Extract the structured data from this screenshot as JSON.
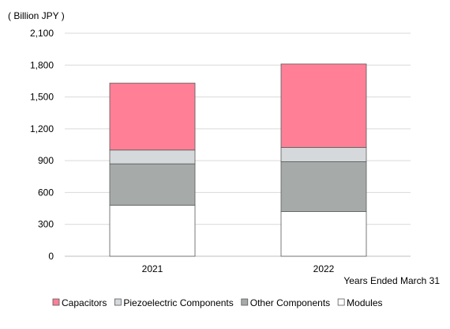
{
  "chart_data": {
    "type": "bar",
    "stacked": true,
    "unit_label": "( Billion JPY )",
    "x_caption": "Years Ended March 31",
    "categories": [
      "2021",
      "2022"
    ],
    "ylim": [
      0,
      2100
    ],
    "yticks": [
      0,
      300,
      600,
      900,
      1200,
      1500,
      1800,
      2100
    ],
    "ytick_labels": [
      "0",
      "300",
      "600",
      "900",
      "1,200",
      "1,500",
      "1,800",
      "2,100"
    ],
    "grid": true,
    "legend_position": "bottom",
    "series": [
      {
        "name": "Modules",
        "values": [
          480,
          420
        ],
        "color": "#ffffff"
      },
      {
        "name": "Other Components",
        "values": [
          390,
          470
        ],
        "color": "#a6aaa9"
      },
      {
        "name": "Piezoelectric Components",
        "values": [
          130,
          135
        ],
        "color": "#d5d9dc"
      },
      {
        "name": "Capacitors",
        "values": [
          630,
          785
        ],
        "color": "#ff8096"
      }
    ],
    "legend_order": [
      "Capacitors",
      "Piezoelectric Components",
      "Other Components",
      "Modules"
    ]
  }
}
